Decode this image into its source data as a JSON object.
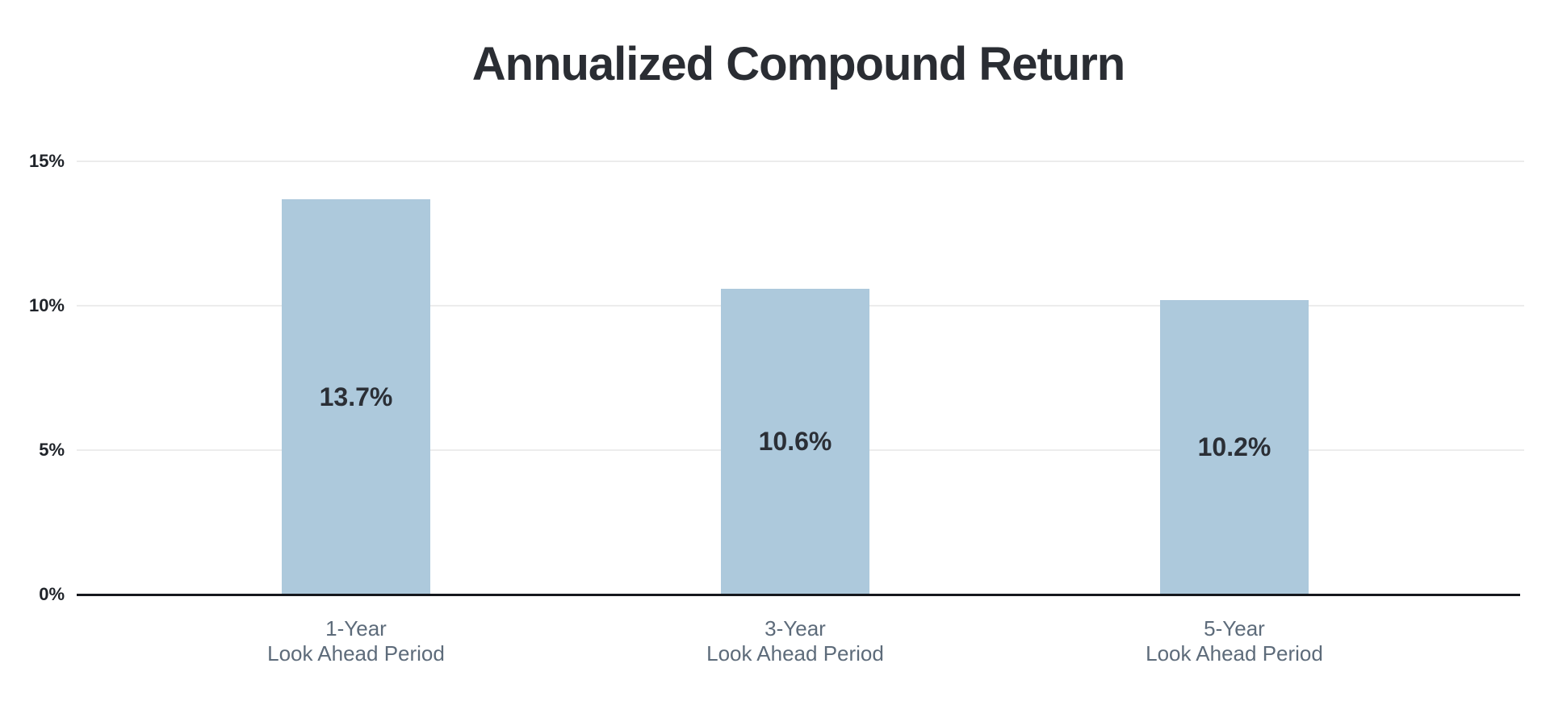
{
  "chart_data": {
    "type": "bar",
    "title": "Annualized Compound Return",
    "xlabel": "",
    "ylabel": "",
    "categories": [
      {
        "line1": "1-Year",
        "line2": "Look Ahead Period"
      },
      {
        "line1": "3-Year",
        "line2": "Look Ahead Period"
      },
      {
        "line1": "5-Year",
        "line2": "Look Ahead Period"
      }
    ],
    "values": [
      13.7,
      10.6,
      10.2
    ],
    "value_labels": [
      "13.7%",
      "10.6%",
      "10.2%"
    ],
    "y_ticks": [
      {
        "label": "0%",
        "value": 0
      },
      {
        "label": "5%",
        "value": 5
      },
      {
        "label": "10%",
        "value": 10
      },
      {
        "label": "15%",
        "value": 15
      }
    ],
    "ylim": [
      0,
      16
    ],
    "grid": "horizontal",
    "legend": "none"
  },
  "colors": {
    "background": "#ffffff",
    "bar_fill": "#adc9dc",
    "gridline": "#ececec",
    "axis_line": "#16181d",
    "title_text": "#2a2d33",
    "tick_text": "#1f2329",
    "value_label_text": "#2b2f36",
    "category_label_text": "#5d6b7a"
  }
}
